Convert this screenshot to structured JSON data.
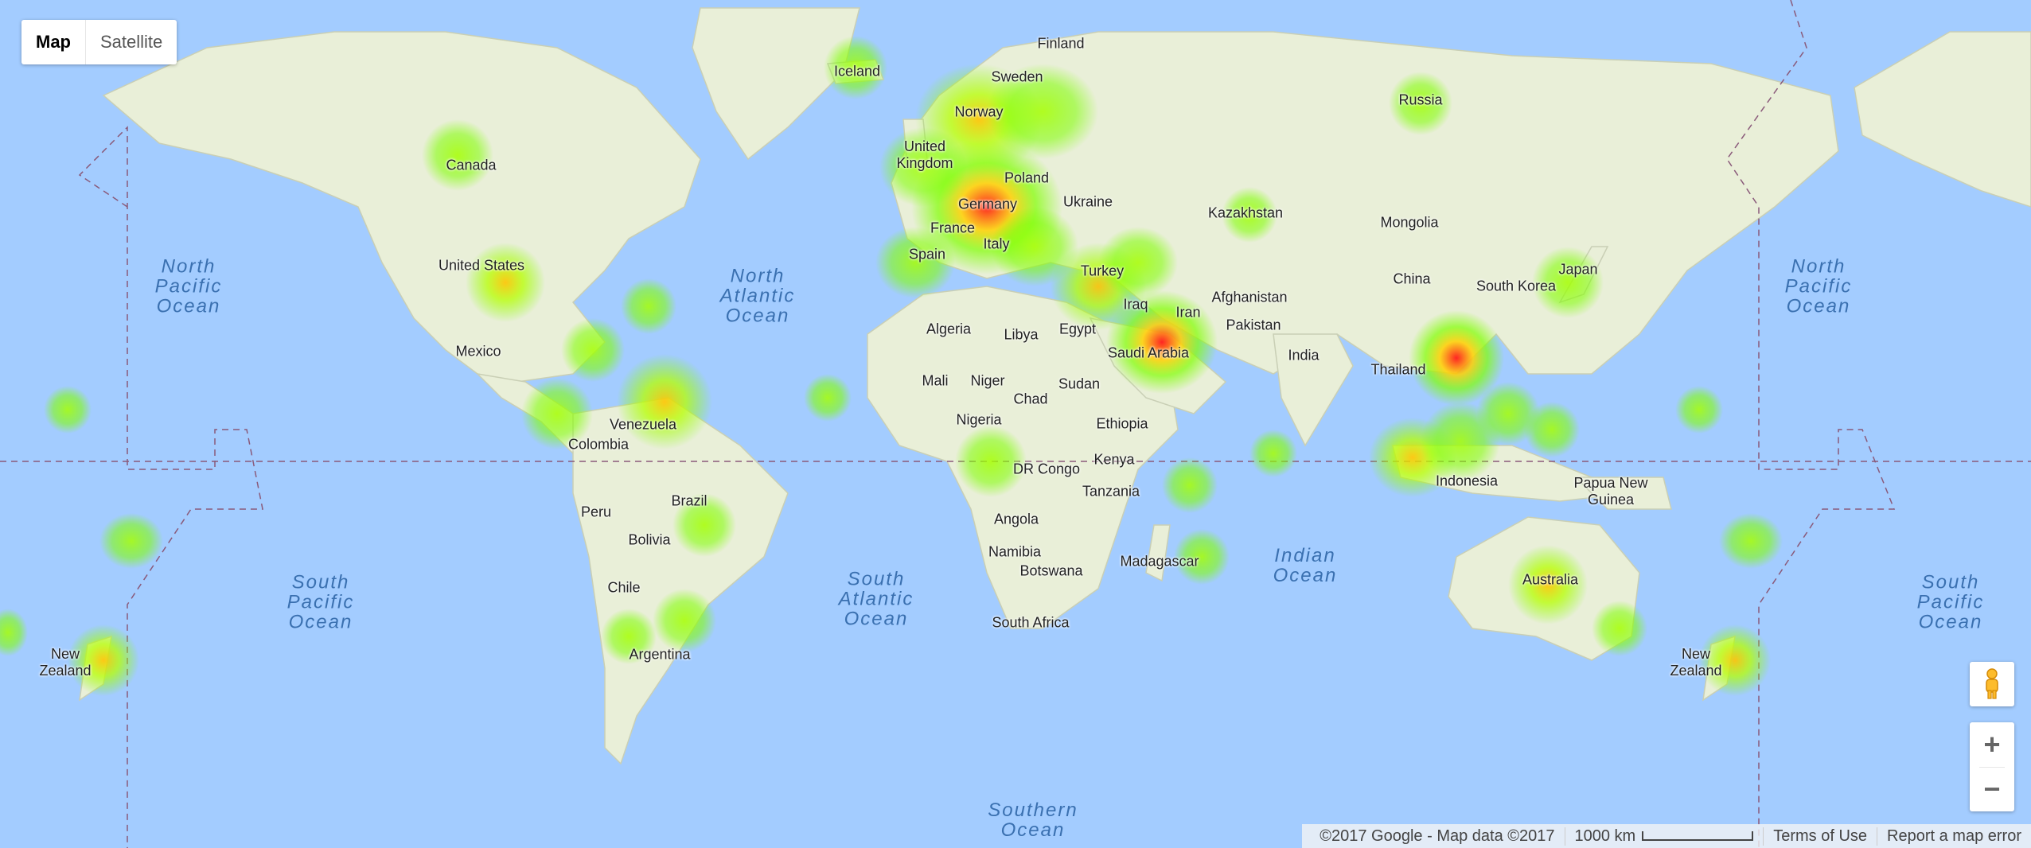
{
  "map_type_control": {
    "map_label": "Map",
    "satellite_label": "Satellite"
  },
  "footer": {
    "copyright": "©2017 Google - Map data ©2017",
    "scale": "1000 km",
    "terms": "Terms of Use",
    "report": "Report a map error"
  },
  "zoom": {
    "in": "+",
    "out": "−"
  },
  "colors": {
    "water": "#a3ccff",
    "land": "#e9efd8",
    "heat_low": "#7fff00",
    "heat_mid": "#ffd000",
    "heat_high": "#ff1a1a"
  },
  "countries": [
    {
      "name": "Finland"
    },
    {
      "name": "Sweden"
    },
    {
      "name": "Norway"
    },
    {
      "name": "Russia"
    },
    {
      "name": "Iceland"
    },
    {
      "name": "United Kingdom"
    },
    {
      "name": "Poland"
    },
    {
      "name": "Ukraine"
    },
    {
      "name": "Germany"
    },
    {
      "name": "France"
    },
    {
      "name": "Italy"
    },
    {
      "name": "Spain"
    },
    {
      "name": "Turkey"
    },
    {
      "name": "Kazakhstan"
    },
    {
      "name": "Mongolia"
    },
    {
      "name": "Canada"
    },
    {
      "name": "United States"
    },
    {
      "name": "Mexico"
    },
    {
      "name": "Algeria"
    },
    {
      "name": "Libya"
    },
    {
      "name": "Egypt"
    },
    {
      "name": "Iraq"
    },
    {
      "name": "Iran"
    },
    {
      "name": "Afghanistan"
    },
    {
      "name": "Pakistan"
    },
    {
      "name": "China"
    },
    {
      "name": "South Korea"
    },
    {
      "name": "Japan"
    },
    {
      "name": "Saudi Arabia"
    },
    {
      "name": "India"
    },
    {
      "name": "Thailand"
    },
    {
      "name": "Mali"
    },
    {
      "name": "Niger"
    },
    {
      "name": "Chad"
    },
    {
      "name": "Sudan"
    },
    {
      "name": "Venezuela"
    },
    {
      "name": "Colombia"
    },
    {
      "name": "Nigeria"
    },
    {
      "name": "Ethiopia"
    },
    {
      "name": "Kenya"
    },
    {
      "name": "DR Congo"
    },
    {
      "name": "Tanzania"
    },
    {
      "name": "Indonesia"
    },
    {
      "name": "Papua New Guinea"
    },
    {
      "name": "Brazil"
    },
    {
      "name": "Peru"
    },
    {
      "name": "Bolivia"
    },
    {
      "name": "Angola"
    },
    {
      "name": "Namibia"
    },
    {
      "name": "Botswana"
    },
    {
      "name": "Madagascar"
    },
    {
      "name": "Chile"
    },
    {
      "name": "South Africa"
    },
    {
      "name": "Australia"
    },
    {
      "name": "Argentina"
    },
    {
      "name": "New Zealand"
    },
    {
      "name": "New Zealand"
    }
  ],
  "oceans": [
    {
      "name": "North Pacific Ocean"
    },
    {
      "name": "North Atlantic Ocean"
    },
    {
      "name": "North Pacific Ocean"
    },
    {
      "name": "South Pacific Ocean"
    },
    {
      "name": "South Atlantic Ocean"
    },
    {
      "name": "Indian Ocean"
    },
    {
      "name": "South Pacific Ocean"
    },
    {
      "name": "Southern Ocean"
    }
  ],
  "heatmap_points": [
    {
      "place": "Germany",
      "intensity": 1.0
    },
    {
      "place": "Saudi Arabia",
      "intensity": 0.95
    },
    {
      "place": "Thailand",
      "intensity": 0.9
    },
    {
      "place": "Venezuela",
      "intensity": 0.6
    },
    {
      "place": "United States",
      "intensity": 0.5
    },
    {
      "place": "Canada",
      "intensity": 0.4
    },
    {
      "place": "Australia",
      "intensity": 0.45
    },
    {
      "place": "New Zealand",
      "intensity": 0.45
    },
    {
      "place": "Norway",
      "intensity": 0.55
    }
  ]
}
